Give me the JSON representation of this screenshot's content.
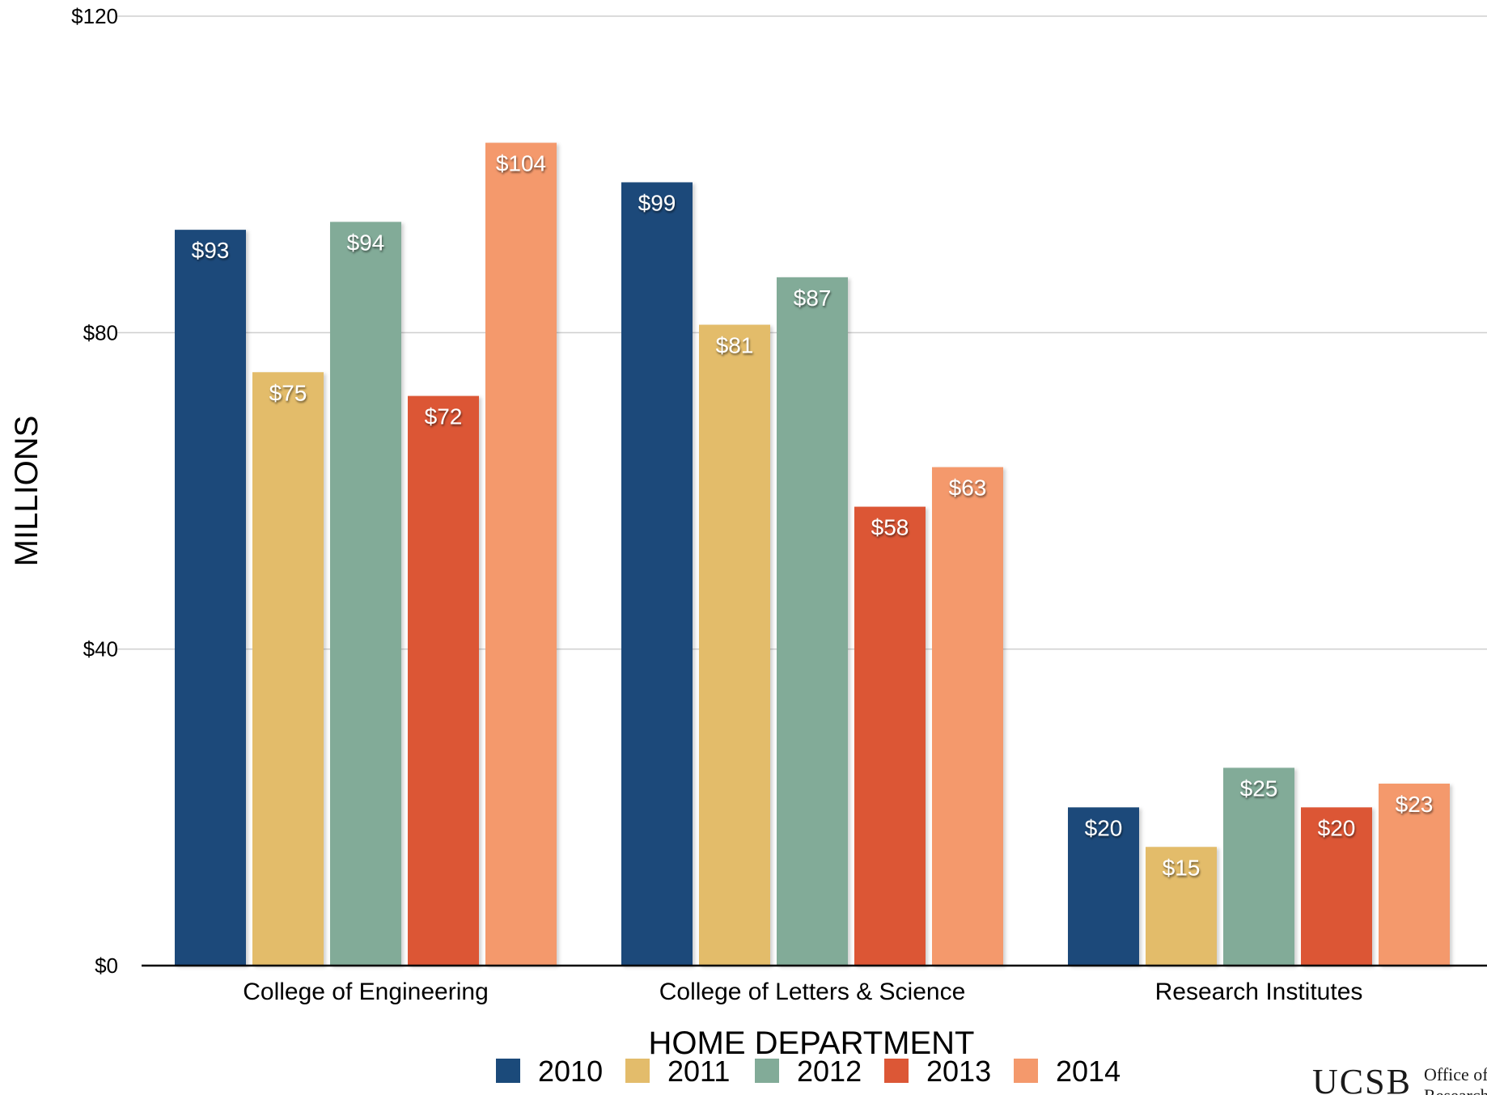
{
  "chart_data": {
    "type": "bar",
    "categories": [
      "College of Engineering",
      "College of Letters & Science",
      "Research Institutes"
    ],
    "series": [
      {
        "name": "2010",
        "color": "#1b4a7a",
        "values": [
          93,
          99,
          20
        ]
      },
      {
        "name": "2011",
        "color": "#e3bc6b",
        "values": [
          75,
          81,
          15
        ]
      },
      {
        "name": "2012",
        "color": "#82ab98",
        "values": [
          94,
          87,
          25
        ]
      },
      {
        "name": "2013",
        "color": "#dc5736",
        "values": [
          72,
          58,
          20
        ]
      },
      {
        "name": "2014",
        "color": "#f4996c",
        "values": [
          104,
          63,
          23
        ]
      }
    ],
    "data_label_prefix": "$",
    "xlabel": "HOME DEPARTMENT",
    "ylabel": "MILLIONS",
    "ylim": [
      0,
      120
    ],
    "yticks": [
      0,
      40,
      80,
      120
    ],
    "ytick_labels": [
      "$0",
      "$40",
      "$80",
      "$120"
    ],
    "grid": true,
    "legend_position": "bottom"
  },
  "logo": {
    "main": "UCSB",
    "sub1": "Office of",
    "sub2": "Research"
  }
}
